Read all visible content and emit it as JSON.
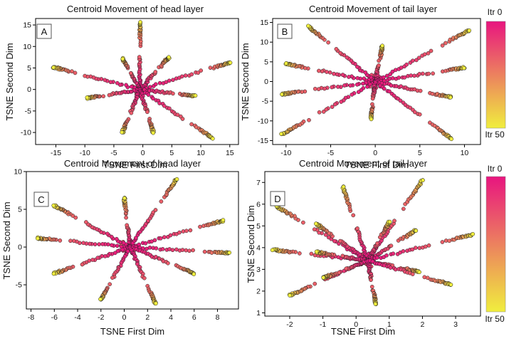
{
  "figure": {
    "colorbar_colors": {
      "start": "#e8157f",
      "end": "#f0ee3e"
    }
  },
  "chart_data": [
    {
      "type": "scatter",
      "panel_label": "A",
      "title": "Centroid Movement of head layer",
      "xlabel": "TSNE First Dim",
      "ylabel": "TSNE Second Dim",
      "xlim": [
        -18.5,
        16.5
      ],
      "ylim": [
        -12.8,
        16.5
      ],
      "xticks": [
        "-15",
        "-10",
        "-5",
        "0",
        "5",
        "10",
        "15"
      ],
      "xtick_values": [
        -15,
        -10,
        -5,
        0,
        5,
        10,
        15
      ],
      "yticks": [
        "-10",
        "-5",
        "0",
        "5",
        "10",
        "15"
      ],
      "ytick_values": [
        -10,
        -5,
        0,
        5,
        10,
        15
      ],
      "center": [
        -0.5,
        0
      ],
      "trajectories": [
        {
          "end": [
            -0.5,
            15.5
          ],
          "split": 0.5
        },
        {
          "end": [
            4.5,
            7.5
          ],
          "split": 0.55
        },
        {
          "end": [
            15,
            6.2
          ],
          "split": 0.7
        },
        {
          "end": [
            -15.5,
            5.2
          ],
          "split": 0.65
        },
        {
          "end": [
            -3.5,
            7.2
          ],
          "split": 0.55
        },
        {
          "end": [
            9,
            -1.5
          ],
          "split": 0.6
        },
        {
          "end": [
            12,
            -11.3
          ],
          "split": 0.6
        },
        {
          "end": [
            -9.5,
            -2
          ],
          "split": 0.6
        },
        {
          "end": [
            -3.5,
            -10
          ],
          "split": 0.55
        },
        {
          "end": [
            1.8,
            -10
          ],
          "split": 0.55
        }
      ],
      "colorbar": null
    },
    {
      "type": "scatter",
      "panel_label": "B",
      "title": "Centroid Movement of tail layer",
      "xlabel": "TSNE First Dim",
      "ylabel": "TSNE Second Dim",
      "xlim": [
        -11.5,
        11.8
      ],
      "ylim": [
        -16,
        16
      ],
      "xticks": [
        "-10",
        "-5",
        "0",
        "5",
        "10"
      ],
      "xtick_values": [
        -10,
        -5,
        0,
        5,
        10
      ],
      "yticks": [
        "-15",
        "-10",
        "-5",
        "0",
        "5",
        "10",
        "15"
      ],
      "ytick_values": [
        -15,
        -10,
        -5,
        0,
        5,
        10,
        15
      ],
      "center": [
        0,
        0
      ],
      "trajectories": [
        {
          "end": [
            -7.5,
            14
          ],
          "split": 0.6
        },
        {
          "end": [
            10.5,
            13
          ],
          "split": 0.6
        },
        {
          "end": [
            0.8,
            9
          ],
          "split": 0.45
        },
        {
          "end": [
            -10,
            4.5
          ],
          "split": 0.65
        },
        {
          "end": [
            10,
            3.5
          ],
          "split": 0.65
        },
        {
          "end": [
            -10.5,
            -3.2
          ],
          "split": 0.65
        },
        {
          "end": [
            8.5,
            -4
          ],
          "split": 0.6
        },
        {
          "end": [
            -10.5,
            -13.5
          ],
          "split": 0.6
        },
        {
          "end": [
            8.5,
            -14.5
          ],
          "split": 0.6
        },
        {
          "end": [
            -0.5,
            -9.5
          ],
          "split": 0.45
        }
      ],
      "colorbar": {
        "top_label": "Itr 0",
        "bottom_label": "Itr 50"
      }
    },
    {
      "type": "scatter",
      "panel_label": "C",
      "title": "Centroid Movement of head layer",
      "xlabel": "TSNE First Dim",
      "ylabel": "TSNE Second Dim",
      "xlim": [
        -8.4,
        9.8
      ],
      "ylim": [
        -8.2,
        10
      ],
      "xticks": [
        "-8",
        "-6",
        "-4",
        "-2",
        "0",
        "2",
        "4",
        "6",
        "8"
      ],
      "xtick_values": [
        -8,
        -6,
        -4,
        -2,
        0,
        2,
        4,
        6,
        8
      ],
      "yticks": [
        "-5",
        "0",
        "5",
        "10"
      ],
      "ytick_values": [
        -5,
        0,
        5,
        10
      ],
      "center": [
        0.5,
        0
      ],
      "trajectories": [
        {
          "end": [
            0,
            6.5
          ],
          "split": 0.45
        },
        {
          "end": [
            4.5,
            9
          ],
          "split": 0.55
        },
        {
          "end": [
            -6,
            5.5
          ],
          "split": 0.6
        },
        {
          "end": [
            -7.5,
            1.2
          ],
          "split": 0.65
        },
        {
          "end": [
            8.5,
            3.5
          ],
          "split": 0.65
        },
        {
          "end": [
            9,
            -0.8
          ],
          "split": 0.65
        },
        {
          "end": [
            -6,
            -3.5
          ],
          "split": 0.65
        },
        {
          "end": [
            6,
            -3.5
          ],
          "split": 0.6
        },
        {
          "end": [
            -2,
            -7
          ],
          "split": 0.6
        },
        {
          "end": [
            2.7,
            -7.5
          ],
          "split": 0.55
        }
      ],
      "colorbar": null
    },
    {
      "type": "scatter",
      "panel_label": "D",
      "title": "Centroid Movement of tail layer",
      "xlabel": "TSNE First Dim",
      "ylabel": "TSNE Second Dim",
      "xlim": [
        -2.75,
        3.75
      ],
      "ylim": [
        0.85,
        7.5
      ],
      "xticks": [
        "-2",
        "-1",
        "0",
        "1",
        "2",
        "3"
      ],
      "xtick_values": [
        -2,
        -1,
        0,
        1,
        2,
        3
      ],
      "yticks": [
        "1",
        "2",
        "3",
        "4",
        "5",
        "6",
        "7"
      ],
      "ytick_values": [
        1,
        2,
        3,
        4,
        5,
        6,
        7
      ],
      "center": [
        0.35,
        3.4
      ],
      "trajectories": [
        {
          "end": [
            -0.4,
            6.8
          ],
          "split": 0.45
        },
        {
          "end": [
            2,
            7.1
          ],
          "split": 0.5
        },
        {
          "end": [
            -2.4,
            5.9
          ],
          "split": 0.6
        },
        {
          "end": [
            -1.2,
            5.1
          ],
          "split": 0.55
        },
        {
          "end": [
            1,
            5.2
          ],
          "split": 0.45
        },
        {
          "end": [
            1.8,
            4.8
          ],
          "split": 0.5
        },
        {
          "end": [
            -2.5,
            3.9
          ],
          "split": 0.6
        },
        {
          "end": [
            -1.2,
            3.8
          ],
          "split": 0.5
        },
        {
          "end": [
            3.5,
            4.6
          ],
          "split": 0.6
        },
        {
          "end": [
            -2,
            1.8
          ],
          "split": 0.55
        },
        {
          "end": [
            -1,
            2.6
          ],
          "split": 0.5
        },
        {
          "end": [
            0.6,
            1.4
          ],
          "split": 0.45
        },
        {
          "end": [
            1.9,
            2.9
          ],
          "split": 0.5
        },
        {
          "end": [
            2.85,
            2.3
          ],
          "split": 0.55
        }
      ],
      "colorbar": {
        "top_label": "Itr 0",
        "bottom_label": "Itr 50"
      }
    }
  ]
}
